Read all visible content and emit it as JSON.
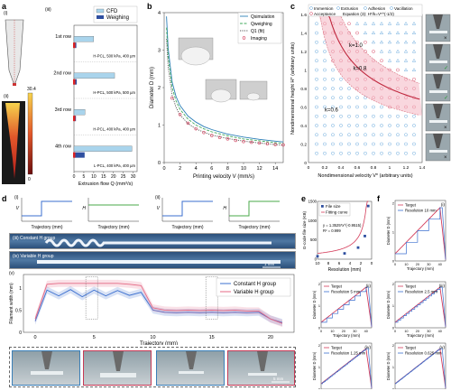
{
  "panel_a": {
    "letter": "a",
    "sub_i": "(i)",
    "sub_ii": "(ii)",
    "sub_iii": "(iii)",
    "colorbar_max": "30.4",
    "colorbar_min": "0",
    "colorbar_unit": "(mm/s)",
    "legend": [
      "CFD",
      "Weighing"
    ],
    "rows": [
      {
        "label": "1st row",
        "caption": "H-PCL, 500 kPa, 400 µm"
      },
      {
        "label": "2nd row",
        "caption": "H-PCL, 500 kPa, 500 µm"
      },
      {
        "label": "3rd row",
        "caption": "H-PCL, 400 kPa, 400 µm"
      },
      {
        "label": "4th row",
        "caption": "L-PCL, 400 kPa, 400 µm"
      }
    ],
    "xlabel": "Extrusion flow Q (mm³/s)",
    "xticks": [
      "0",
      "5",
      "10",
      "15",
      "20",
      "25",
      "30"
    ]
  },
  "chart_data": [
    {
      "type": "bar",
      "orientation": "horizontal",
      "categories": [
        "1st row",
        "2nd row",
        "3rd row",
        "4th row"
      ],
      "series": [
        {
          "name": "CFD",
          "values": [
            10.0,
            20.6,
            5.6,
            29.4
          ]
        },
        {
          "name": "Weighing",
          "values": [
            1.2,
            1.4,
            1.0,
            5.4
          ]
        }
      ],
      "xlabel": "Extrusion flow Q (mm³/s)",
      "xlim": [
        0,
        32
      ]
    },
    {
      "type": "line",
      "title": "",
      "xlabel": "Printing velocity V (mm/s)",
      "ylabel": "Diameter D (mm)",
      "xlim": [
        0,
        15
      ],
      "ylim": [
        0,
        4
      ],
      "series": [
        {
          "name": "Qsimulation",
          "x": [
            0.3,
            0.5,
            1,
            1.5,
            2,
            3,
            4,
            5,
            6,
            8,
            10,
            12,
            14,
            15
          ],
          "y": [
            3.9,
            3.05,
            2.15,
            1.76,
            1.52,
            1.24,
            1.08,
            0.96,
            0.88,
            0.76,
            0.68,
            0.62,
            0.57,
            0.55
          ]
        },
        {
          "name": "Qweighing",
          "x": [
            0.3,
            0.5,
            1,
            1.5,
            2,
            3,
            4,
            5,
            6,
            8,
            10,
            12,
            14,
            15
          ],
          "y": [
            3.6,
            2.85,
            2.0,
            1.64,
            1.42,
            1.16,
            1.0,
            0.9,
            0.82,
            0.71,
            0.63,
            0.58,
            0.53,
            0.51
          ]
        },
        {
          "name": "Q1 (fit)",
          "x": [
            0.3,
            0.5,
            1,
            1.5,
            2,
            3,
            4,
            5,
            6,
            8,
            10,
            12,
            14,
            15
          ],
          "y": [
            3.3,
            2.55,
            1.8,
            1.47,
            1.27,
            1.04,
            0.9,
            0.81,
            0.73,
            0.64,
            0.57,
            0.52,
            0.48,
            0.46
          ]
        },
        {
          "name": "Imaging",
          "x": [
            1,
            2,
            3,
            4,
            5,
            6,
            7,
            8,
            9,
            10,
            11,
            12,
            13,
            14,
            15
          ],
          "y": [
            1.72,
            1.28,
            1.05,
            0.9,
            0.8,
            0.72,
            0.67,
            0.63,
            0.59,
            0.56,
            0.54,
            0.52,
            0.5,
            0.48,
            0.47
          ]
        }
      ],
      "xticks": [
        0,
        2,
        4,
        6,
        8,
        10,
        12,
        14
      ],
      "yticks": [
        0,
        1,
        2,
        3,
        4
      ]
    },
    {
      "type": "scatter",
      "xlabel": "Nondimensional velocity V* (arbitrary units)",
      "ylabel": "Nondimensional height H* (arbitrary units)",
      "xlim": [
        0,
        1.4
      ],
      "ylim": [
        0,
        1.6
      ],
      "legend": [
        "Immersion",
        "Extrusion",
        "Adhesion",
        "Vacillation",
        "Acceptance",
        "Equation (3): H*/k=V*^(-1/2)"
      ],
      "curves": [
        {
          "k": 1.0,
          "label": "k=1.0"
        },
        {
          "k": 0.8,
          "label": "k=0.8"
        },
        {
          "k": 0.6,
          "label": "k=0.6"
        }
      ],
      "xticks": [
        0,
        0.2,
        0.4,
        0.6,
        0.8,
        1.0,
        1.2,
        1.4
      ],
      "yticks": [
        0,
        0.2,
        0.4,
        0.6,
        0.8,
        1.0,
        1.2,
        1.4,
        1.6
      ]
    },
    {
      "type": "line",
      "title": "",
      "xlabel": "Trajectory (mm)",
      "ylabel": "Filament width (mm)",
      "xlim": [
        -1,
        22
      ],
      "ylim": [
        0,
        1.3
      ],
      "series": [
        {
          "name": "Constant H group",
          "x": [
            0,
            1,
            2,
            3,
            4,
            5,
            6,
            7,
            8,
            9,
            10,
            11,
            12,
            13,
            14,
            15,
            16,
            17,
            18,
            19,
            20,
            21
          ],
          "y": [
            0.25,
            0.95,
            0.82,
            0.96,
            0.8,
            0.95,
            0.82,
            0.94,
            0.83,
            0.9,
            0.5,
            0.45,
            0.44,
            0.45,
            0.44,
            0.45,
            0.44,
            0.45,
            0.44,
            0.45,
            0.3,
            0.22
          ]
        },
        {
          "name": "Variable H group",
          "x": [
            0,
            1,
            2,
            3,
            4,
            5,
            6,
            7,
            8,
            9,
            10,
            11,
            12,
            13,
            14,
            15,
            16,
            17,
            18,
            19,
            20,
            21
          ],
          "y": [
            0.3,
            1.08,
            1.1,
            1.1,
            1.1,
            1.1,
            1.1,
            1.1,
            1.08,
            1.05,
            0.55,
            0.5,
            0.49,
            0.5,
            0.49,
            0.5,
            0.49,
            0.5,
            0.48,
            0.48,
            0.3,
            0.2
          ]
        }
      ],
      "xticks": [
        0,
        5,
        10,
        15,
        20
      ],
      "yticks": [
        0,
        0.5,
        1.0
      ]
    },
    {
      "type": "scatter",
      "xlabel": "Resolution (mm)",
      "ylabel": "G-code file size (KB)",
      "xlim": [
        0,
        10
      ],
      "ylim": [
        0,
        1500
      ],
      "series": [
        {
          "name": "File size",
          "x": [
            0.625,
            1.25,
            2.5,
            5,
            10
          ],
          "y": [
            1380,
            600,
            300,
            150,
            75
          ]
        }
      ],
      "fit_label": "Fitting curve",
      "fit_equation": "y = 1.3525*x^(-0.9515)",
      "r_squared": "R² = 0.999",
      "xticks": [
        10,
        8,
        6,
        4,
        2,
        0
      ],
      "yticks": [
        0,
        500,
        1000,
        1500
      ]
    }
  ],
  "panel_b": {
    "letter": "b",
    "legend": [
      "Qsimulation",
      "Qweighing",
      "Q1 (fit)",
      "Imaging"
    ],
    "xlabel": "Printing velocity V (mm/s)",
    "ylabel": "Diameter D (mm)"
  },
  "panel_c": {
    "letter": "c",
    "xlabel": "Nondimensional velocity V* (arbitrary units)",
    "ylabel": "Nondimensional height H* (arbitrary units)",
    "k_labels": [
      "k=1.0",
      "k=0.8",
      "k=0.6"
    ],
    "legend": [
      "Immersion",
      "Extrusion",
      "Adhesion",
      "Vacillation",
      "Acceptance"
    ],
    "equation": "Equation (3): H*/k=V*^(-1/2)"
  },
  "panel_d": {
    "letter": "d",
    "sub_i": "(i)",
    "sub_ii": "(ii)",
    "sub_iii": "(iii) Constant H group",
    "sub_iv": "(iv) Variable H group",
    "sub_v": "(v)",
    "scale_bar": "1 mm",
    "scale_bar_2": "5 mm",
    "trajectory_label": "Trajectory (mm)",
    "v_label": "V",
    "h_label": "H",
    "legend": [
      "Constant H group",
      "Variable H group"
    ],
    "xlabel": "Trajectory (mm)",
    "ylabel": "Filament width (mm)"
  },
  "panel_e": {
    "letter": "e",
    "legend": [
      "File size",
      "Fitting curve"
    ],
    "equation": "y = 1.3525*x^(-0.9515)",
    "r2": "R² = 0.999",
    "xlabel": "Resolution (mm)",
    "ylabel": "G-code file size (KB)"
  },
  "panel_f": {
    "letter": "f",
    "target": "Target",
    "ylabel": "Diameter D (mm)",
    "xlabel": "Trajectory (mm)",
    "resolutions": [
      "Resolution 10 mm",
      "Resolution 5 mm",
      "Resolution 2.5 mm",
      "Resolution 1.25 mm",
      "Resolution 0.625 mm"
    ],
    "subs": [
      "(i)",
      "(ii)",
      "(iii)",
      "(iv)",
      "(v)"
    ]
  },
  "colors": {
    "cfd": "#a9d4ec",
    "weighing": "#2f4fa0",
    "pink": "#e46a85",
    "blue": "#3b6fcf",
    "teal": "#2b8a8a",
    "green": "#4aa84a"
  }
}
